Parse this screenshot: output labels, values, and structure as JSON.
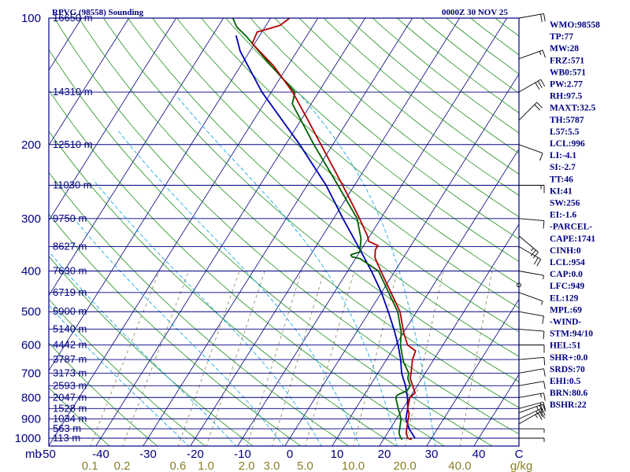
{
  "header": {
    "station": "RPVG (98558) Sounding",
    "time": "0000Z 30 NOV 25"
  },
  "colors": {
    "frame": "#000080",
    "isobar": "#000080",
    "isotherm": "#000080",
    "dry_adiabat": "#008000",
    "moist_adiabat": "#00a0e0",
    "mixing_ratio": "#777744",
    "temperature": "#b00000",
    "dewpoint": "#006000",
    "parcel": "#0000b0",
    "mr_label": "#8b7d28"
  },
  "chart_data": {
    "type": "skew-t",
    "title": "RPVG (98558) Sounding",
    "valid": "0000Z 30 NOV 25",
    "pressure_axis": {
      "unit": "mb",
      "range": [
        1000,
        100
      ],
      "ticks": [
        "100",
        "200",
        "300",
        "400",
        "500",
        "600",
        "700",
        "800",
        "900",
        "1000"
      ]
    },
    "temperature_axis": {
      "unit": "C",
      "range": [
        -50,
        50
      ],
      "ticks": [
        "-50",
        "-40",
        "-30",
        "-20",
        "-10",
        "0",
        "10",
        "20",
        "30",
        "40",
        "C"
      ]
    },
    "mixing_ratio_axis": {
      "unit": "g/kg",
      "ticks": [
        "0.1",
        "0.2",
        "0.6",
        "1.0",
        "2.0",
        "3.0",
        "5.0",
        "10.0",
        "20.0",
        "40.0",
        "g/kg"
      ]
    },
    "height_labels": [
      {
        "p": 100,
        "label": "16650 m"
      },
      {
        "p": 150,
        "label": "14310 m"
      },
      {
        "p": 200,
        "label": "12510 m"
      },
      {
        "p": 250,
        "label": "11030 m"
      },
      {
        "p": 300,
        "label": "9750 m"
      },
      {
        "p": 350,
        "label": "8627 m"
      },
      {
        "p": 400,
        "label": "7630 m"
      },
      {
        "p": 450,
        "label": "6719 m"
      },
      {
        "p": 500,
        "label": "5900 m"
      },
      {
        "p": 550,
        "label": "5140 m"
      },
      {
        "p": 600,
        "label": "4442 m"
      },
      {
        "p": 650,
        "label": "3787 m"
      },
      {
        "p": 700,
        "label": "3173 m"
      },
      {
        "p": 750,
        "label": "2593 m"
      },
      {
        "p": 800,
        "label": "2047 m"
      },
      {
        "p": 850,
        "label": "1528 m"
      },
      {
        "p": 900,
        "label": "1034 m"
      },
      {
        "p": 950,
        "label": "563 m"
      },
      {
        "p": 1000,
        "label": "113 m"
      }
    ],
    "temperature": [
      [
        1008,
        26.0
      ],
      [
        1000,
        25.0
      ],
      [
        975,
        24.0
      ],
      [
        950,
        23.5
      ],
      [
        925,
        23.0
      ],
      [
        900,
        22.5
      ],
      [
        875,
        22.0
      ],
      [
        850,
        21.0
      ],
      [
        825,
        20.5
      ],
      [
        800,
        20.0
      ],
      [
        780,
        20.5
      ],
      [
        760,
        19.5
      ],
      [
        720,
        17.5
      ],
      [
        700,
        17.0
      ],
      [
        650,
        15.5
      ],
      [
        620,
        15.0
      ],
      [
        600,
        12.5
      ],
      [
        560,
        10.0
      ],
      [
        500,
        6.5
      ],
      [
        450,
        2.0
      ],
      [
        400,
        -3.0
      ],
      [
        372,
        -6.0
      ],
      [
        356,
        -7.0
      ],
      [
        348,
        -7.0
      ],
      [
        340,
        -9.5
      ],
      [
        330,
        -10.5
      ],
      [
        300,
        -14.5
      ],
      [
        280,
        -17.5
      ],
      [
        250,
        -22.5
      ],
      [
        200,
        -32.5
      ],
      [
        175,
        -38.5
      ],
      [
        150,
        -45.5
      ],
      [
        130,
        -53.0
      ],
      [
        115,
        -60.5
      ],
      [
        108,
        -61.0
      ],
      [
        104,
        -57.0
      ],
      [
        100,
        -56.0
      ]
    ],
    "dewpoint": [
      [
        1008,
        24.0
      ],
      [
        1000,
        23.5
      ],
      [
        975,
        22.5
      ],
      [
        950,
        22.0
      ],
      [
        925,
        21.5
      ],
      [
        900,
        21.0
      ],
      [
        850,
        19.0
      ],
      [
        800,
        17.0
      ],
      [
        790,
        17.0
      ],
      [
        770,
        18.5
      ],
      [
        750,
        18.5
      ],
      [
        720,
        17.0
      ],
      [
        700,
        16.5
      ],
      [
        660,
        14.0
      ],
      [
        640,
        13.0
      ],
      [
        600,
        11.0
      ],
      [
        560,
        9.5
      ],
      [
        500,
        6.0
      ],
      [
        450,
        1.5
      ],
      [
        400,
        -3.5
      ],
      [
        374,
        -9.0
      ],
      [
        370,
        -11.0
      ],
      [
        366,
        -11.5
      ],
      [
        360,
        -10.0
      ],
      [
        335,
        -11.5
      ],
      [
        300,
        -15.0
      ],
      [
        250,
        -23.5
      ],
      [
        200,
        -34.0
      ],
      [
        160,
        -44.0
      ],
      [
        150,
        -45.0
      ],
      [
        130,
        -53.5
      ],
      [
        110,
        -63.0
      ],
      [
        105,
        -66.0
      ],
      [
        100,
        -68.0
      ]
    ],
    "parcel": [
      [
        1000,
        26.5
      ],
      [
        950,
        24.0
      ],
      [
        900,
        22.0
      ],
      [
        850,
        21.0
      ],
      [
        800,
        19.5
      ],
      [
        750,
        17.5
      ],
      [
        700,
        15.0
      ],
      [
        650,
        13.0
      ],
      [
        600,
        10.5
      ],
      [
        550,
        7.5
      ],
      [
        500,
        4.0
      ],
      [
        450,
        0.0
      ],
      [
        400,
        -5.0
      ],
      [
        350,
        -11.0
      ],
      [
        300,
        -18.0
      ],
      [
        250,
        -26.0
      ],
      [
        200,
        -37.0
      ],
      [
        150,
        -52.0
      ],
      [
        120,
        -62.0
      ],
      [
        110,
        -65.0
      ]
    ],
    "wind": [
      {
        "p": 100,
        "dir": 80,
        "speed": 20
      },
      {
        "p": 125,
        "dir": 70,
        "speed": 15
      },
      {
        "p": 150,
        "dir": 60,
        "speed": 30
      },
      {
        "p": 175,
        "dir": 45,
        "speed": 20
      },
      {
        "p": 200,
        "dir": 110,
        "speed": 10
      },
      {
        "p": 250,
        "dir": 90,
        "speed": 15
      },
      {
        "p": 300,
        "dir": 95,
        "speed": 10
      },
      {
        "p": 330,
        "dir": 130,
        "speed": 25
      },
      {
        "p": 350,
        "dir": 120,
        "speed": 20
      },
      {
        "p": 400,
        "dir": 100,
        "speed": 5
      },
      {
        "p": 450,
        "dir": 110,
        "speed": 5
      },
      {
        "p": 500,
        "dir": 100,
        "speed": 10
      },
      {
        "p": 550,
        "dir": 95,
        "speed": 10
      },
      {
        "p": 600,
        "dir": 90,
        "speed": 10
      },
      {
        "p": 650,
        "dir": 85,
        "speed": 10
      },
      {
        "p": 700,
        "dir": 80,
        "speed": 10
      },
      {
        "p": 750,
        "dir": 80,
        "speed": 10
      },
      {
        "p": 800,
        "dir": 80,
        "speed": 15
      },
      {
        "p": 850,
        "dir": 75,
        "speed": 20
      },
      {
        "p": 870,
        "dir": 70,
        "speed": 25
      },
      {
        "p": 900,
        "dir": 65,
        "speed": 25
      },
      {
        "p": 925,
        "dir": 60,
        "speed": 25
      },
      {
        "p": 950,
        "dir": 90,
        "speed": 5
      },
      {
        "p": 1000,
        "dir": 90,
        "speed": 5
      }
    ]
  },
  "indices": [
    "WMO:98558",
    "TP:77",
    "MW:28",
    "FRZ:571",
    "WB0:571",
    "PW:2.77",
    "RH:97.5",
    "MAXT:32.5",
    "TH:5787",
    "L57:5.5",
    "LCL:996",
    "LI:-4.1",
    "SI:-2.7",
    "TT:46",
    "KI:41",
    "SW:256",
    "EI:-1.6",
    "-PARCEL-",
    "CAPE:1741",
    "CINH:0",
    "LCL:954",
    "CAP:0.0",
    "LFC:949",
    "EL:129",
    "MPL:69",
    "-WIND-",
    "STM:94/10",
    "HEL:51",
    "SHR+:0.0",
    "SRDS:70",
    "EHI:0.5",
    "BRN:80.6",
    "BSHR:22"
  ]
}
